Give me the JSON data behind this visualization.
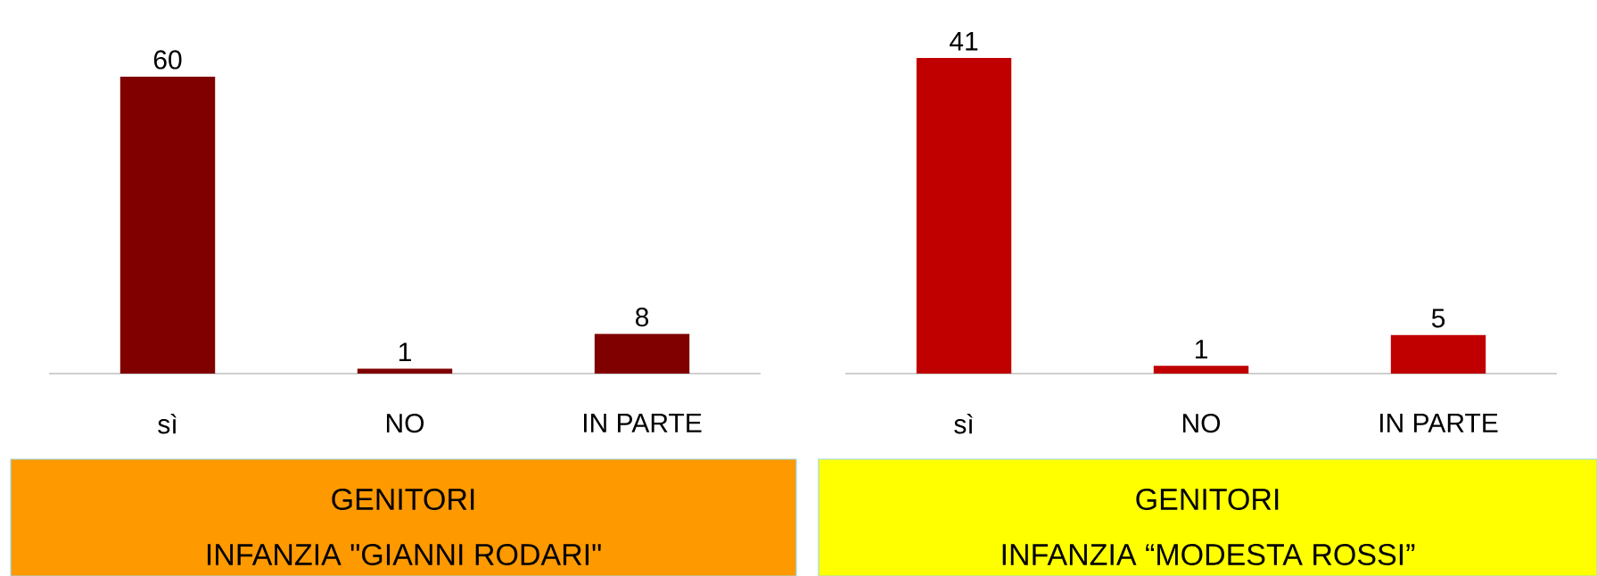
{
  "chart_data": [
    {
      "type": "bar",
      "title": "GENITORI",
      "subtitle": "INFANZIA \"GIANNI RODARI\"",
      "categories": [
        "sì",
        "NO",
        "IN PARTE"
      ],
      "values": [
        60,
        1,
        8
      ],
      "color": "#800000",
      "ylim": [
        0,
        60
      ],
      "tick_labels": "x",
      "data_labels": true
    },
    {
      "type": "bar",
      "title": "GENITORI",
      "subtitle": "INFANZIA “MODESTA ROSSI”",
      "categories": [
        "sì",
        "NO",
        "IN PARTE"
      ],
      "values": [
        41,
        1,
        5
      ],
      "color": "#C00000",
      "ylim": [
        0,
        41
      ],
      "tick_labels": "x",
      "data_labels": true
    }
  ]
}
